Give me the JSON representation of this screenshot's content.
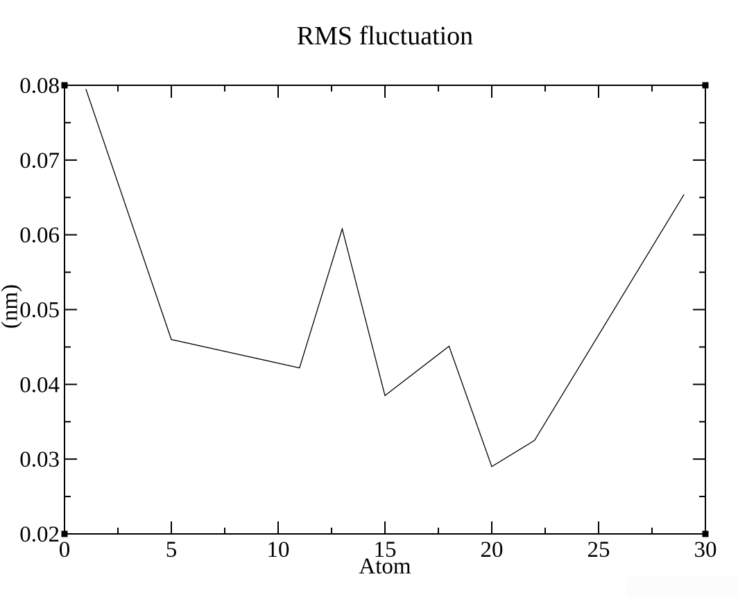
{
  "chart_data": {
    "type": "line",
    "title": "RMS fluctuation",
    "xlabel": "Atom",
    "ylabel": "(nm)",
    "xlim": [
      0,
      30
    ],
    "ylim": [
      0.02,
      0.08
    ],
    "grid": false,
    "legend_visible": false,
    "background_color": "#ffffff",
    "line_color": "#000000",
    "frame_color": "#000000",
    "frame_corner_markers": true,
    "series": [
      {
        "name": "RMS fluctuation",
        "x": [
          1,
          5,
          11,
          13,
          15,
          18,
          20,
          22,
          29
        ],
        "y": [
          0.0795,
          0.046,
          0.0422,
          0.0608,
          0.0385,
          0.0451,
          0.029,
          0.0325,
          0.0654
        ]
      }
    ],
    "x_major_ticks": [
      0,
      5,
      10,
      15,
      20,
      25,
      30
    ],
    "x_major_tick_labels": [
      "0",
      "5",
      "10",
      "15",
      "20",
      "25",
      "30"
    ],
    "x_minor_ticks": [
      2.5,
      7.5,
      12.5,
      17.5,
      22.5,
      27.5
    ],
    "y_major_ticks": [
      0.02,
      0.03,
      0.04,
      0.05,
      0.06,
      0.07,
      0.08
    ],
    "y_major_tick_labels": [
      "0.02",
      "0.03",
      "0.04",
      "0.05",
      "0.06",
      "0.07",
      "0.08"
    ],
    "y_minor_ticks": [
      0.025,
      0.035,
      0.045,
      0.055,
      0.065,
      0.075
    ]
  }
}
